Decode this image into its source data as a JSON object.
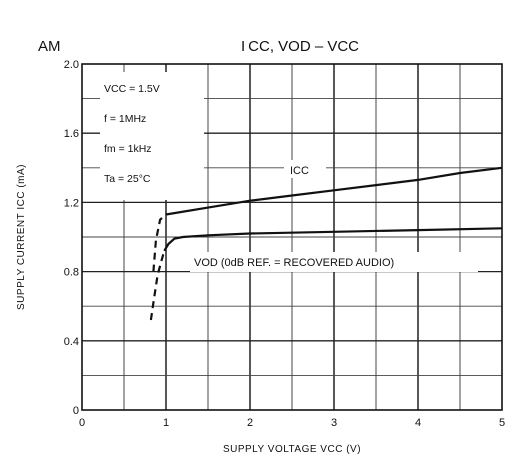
{
  "chart_data": {
    "type": "line",
    "corner_label": "AM",
    "title": "I CC, VOD – VCC",
    "xlabel": "SUPPLY VOLTAGE   VCC   (V)",
    "ylabel": "SUPPLY CURRENT   ICC   (mA)",
    "xlim": [
      0,
      5
    ],
    "ylim": [
      0,
      2.0
    ],
    "x_ticks": [
      0,
      1,
      2,
      3,
      4,
      5
    ],
    "y_ticks": [
      0,
      0.4,
      0.8,
      1.2,
      1.6,
      2.0
    ],
    "y_tick_labels": [
      "0",
      "0.4",
      "0.8",
      "1.2",
      "1.6",
      "2.0"
    ],
    "grid": true,
    "conditions": [
      "VCC = 1.5V",
      "f = 1MHz",
      "fm = 1kHz",
      "Ta = 25°C"
    ],
    "series": [
      {
        "name": "ICC",
        "x": [
          1.0,
          1.5,
          2.0,
          2.5,
          3.0,
          3.5,
          4.0,
          4.5,
          5.0
        ],
        "y": [
          1.13,
          1.17,
          1.21,
          1.24,
          1.27,
          1.3,
          1.33,
          1.37,
          1.4
        ],
        "dashed": {
          "x": [
            0.85,
            0.88,
            0.93,
            1.0
          ],
          "y": [
            0.8,
            0.98,
            1.1,
            1.13
          ]
        }
      },
      {
        "name": "VOD (0dB REF. = RECOVERED AUDIO)",
        "x": [
          0.98,
          1.03,
          1.1,
          1.2,
          1.5,
          2.0,
          3.0,
          4.0,
          5.0
        ],
        "y": [
          0.92,
          0.96,
          0.99,
          1.0,
          1.01,
          1.02,
          1.03,
          1.04,
          1.05
        ],
        "dashed": {
          "x": [
            0.82,
            0.85,
            0.9,
            0.95,
            0.98
          ],
          "y": [
            0.52,
            0.62,
            0.78,
            0.87,
            0.92
          ]
        }
      }
    ]
  }
}
